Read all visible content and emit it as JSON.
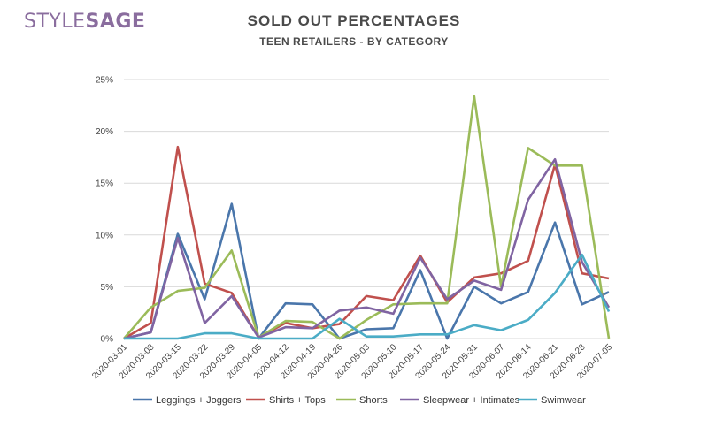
{
  "logo": {
    "part1": "STYLE",
    "part2": "SAGE"
  },
  "chart_data": {
    "type": "line",
    "title": "SOLD OUT PERCENTAGES",
    "subtitle": "TEEN RETAILERS - BY CATEGORY",
    "xlabel": "",
    "ylabel": "",
    "ylim": [
      0,
      25
    ],
    "y_ticks": [
      "0%",
      "5%",
      "10%",
      "15%",
      "20%",
      "25%"
    ],
    "grid": "horizontal",
    "legend_position": "bottom",
    "categories": [
      "2020-03-01",
      "2020-03-08",
      "2020-03-15",
      "2020-03-22",
      "2020-03-29",
      "2020-04-05",
      "2020-04-12",
      "2020-04-19",
      "2020-04-26",
      "2020-05-03",
      "2020-05-10",
      "2020-05-17",
      "2020-05-24",
      "2020-05-31",
      "2020-06-07",
      "2020-06-14",
      "2020-06-21",
      "2020-06-28",
      "2020-07-05"
    ],
    "series": [
      {
        "name": "Leggings + Joggers",
        "color": "#4a76ab",
        "values": [
          0,
          0.6,
          10.1,
          3.8,
          13.0,
          0,
          3.4,
          3.3,
          0,
          0.9,
          1.0,
          6.6,
          0,
          5.0,
          3.4,
          4.5,
          11.2,
          3.3,
          4.5
        ]
      },
      {
        "name": "Shirts + Tops",
        "color": "#c0504d",
        "values": [
          0,
          1.5,
          18.5,
          5.3,
          4.4,
          0.1,
          1.5,
          1.0,
          1.4,
          4.1,
          3.7,
          8.0,
          3.5,
          5.9,
          6.3,
          7.5,
          16.8,
          6.3,
          5.8
        ]
      },
      {
        "name": "Shorts",
        "color": "#9bbb59",
        "values": [
          0,
          3.0,
          4.6,
          4.9,
          8.5,
          0.1,
          1.7,
          1.6,
          0,
          1.8,
          3.3,
          3.4,
          3.4,
          23.4,
          5.0,
          18.4,
          16.7,
          16.7,
          0
        ]
      },
      {
        "name": "Sleepwear + Intimates",
        "color": "#8064a2",
        "values": [
          0,
          0.6,
          9.7,
          1.5,
          4.1,
          0.1,
          1.1,
          1.0,
          2.7,
          3.0,
          2.4,
          7.8,
          3.8,
          5.6,
          4.7,
          13.4,
          17.3,
          7.4,
          3.0
        ]
      },
      {
        "name": "Swimwear",
        "color": "#4bacc6",
        "values": [
          0,
          0,
          0,
          0.5,
          0.5,
          0,
          0,
          0,
          1.9,
          0.2,
          0.2,
          0.4,
          0.4,
          1.3,
          0.8,
          1.8,
          4.4,
          8.1,
          2.6
        ]
      }
    ]
  }
}
